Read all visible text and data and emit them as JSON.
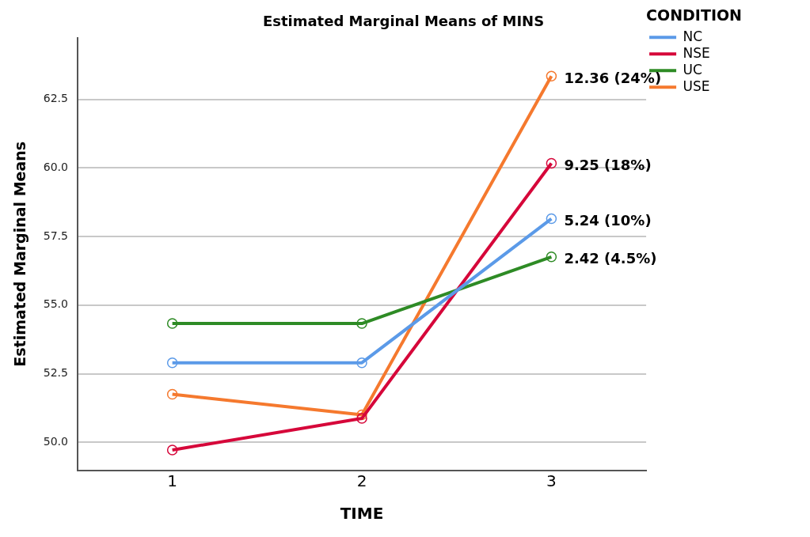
{
  "chart_data": {
    "type": "line",
    "title": "Estimated Marginal Means of MINS",
    "xlabel": "TIME",
    "ylabel": "Estimated Marginal Means",
    "legend_title": "CONDITION",
    "categories": [
      "1",
      "2",
      "3"
    ],
    "ylim": [
      48.97,
      64.75
    ],
    "yticks": [
      {
        "value": 50,
        "label": "50.0"
      },
      {
        "value": 52.5,
        "label": "52.5"
      },
      {
        "value": 55,
        "label": "55.0"
      },
      {
        "value": 57.5,
        "label": "57.5"
      },
      {
        "value": 60,
        "label": "60.0"
      },
      {
        "value": 62.5,
        "label": "62.5"
      }
    ],
    "series": [
      {
        "name": "NC",
        "color": "#5b9ae8",
        "values": [
          52.9,
          52.9,
          58.15
        ]
      },
      {
        "name": "NSE",
        "color": "#d6073a",
        "values": [
          49.72,
          50.87,
          60.17
        ]
      },
      {
        "name": "UC",
        "color": "#2e8b25",
        "values": [
          54.33,
          54.33,
          56.76
        ]
      },
      {
        "name": "USE",
        "color": "#f5792e",
        "values": [
          51.75,
          51.0,
          63.35
        ]
      }
    ],
    "annotations": [
      {
        "text": "12.36 (24%)",
        "x": "3",
        "y": 63.35
      },
      {
        "text": "9.25 (18%)",
        "x": "3",
        "y": 60.17
      },
      {
        "text": "5.24 (10%)",
        "x": "3",
        "y": 58.15
      },
      {
        "text": "2.42 (4.5%)",
        "x": "3",
        "y": 56.76
      }
    ],
    "grid": "y",
    "legend": "right",
    "marker": "circle",
    "line_style": "solid"
  }
}
